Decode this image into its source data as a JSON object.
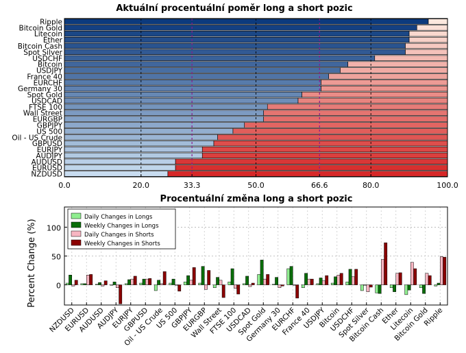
{
  "chart_data": [
    {
      "type": "bar",
      "orientation": "horizontal",
      "stacked": true,
      "title": "Aktuální procentuální poměr long a short pozic",
      "categories": [
        "Ripple",
        "Bitcoin Gold",
        "Litecoin",
        "Ether",
        "Bitcoin Cash",
        "Spot Silver",
        "USDCHF",
        "Bitcoin",
        "USDJPY",
        "France 40",
        "EURCHF",
        "Germany 30",
        "Spot Gold",
        "USDCAD",
        "FTSE 100",
        "Wall Street",
        "EURGBP",
        "GBPJPY",
        "US 500",
        "Oil - US Crude",
        "GBPUSD",
        "EURJPY",
        "AUDJPY",
        "AUDUSD",
        "EURUSD",
        "NZDUSD"
      ],
      "long_values": [
        95,
        92,
        90,
        90,
        89,
        89,
        81,
        74,
        72,
        69,
        67,
        67,
        62,
        61,
        53,
        52,
        52,
        47,
        44,
        40,
        39,
        36,
        36,
        29,
        29,
        27
      ],
      "xlim": [
        0,
        100
      ],
      "xticks": [
        "0.0",
        "20.0",
        "33.3",
        "50.0",
        "66.6",
        "80.0",
        "100.0"
      ],
      "highlight_ticks": [
        "33.3",
        "66.6"
      ],
      "highlight_color": "#8b1a8b"
    },
    {
      "type": "bar",
      "title": "Procentuální změna long a short pozic",
      "ylabel": "Percent Change (%)",
      "ylim": [
        -35,
        135
      ],
      "yticks": [
        0,
        50,
        100
      ],
      "grid": true,
      "legend_position": "top-left",
      "categories": [
        "NZDUSD",
        "EURUSD",
        "AUDUSD",
        "AUDJPY",
        "EURJPY",
        "GBPUSD",
        "Oil - US Crude",
        "US 500",
        "GBPJPY",
        "EURGBP",
        "Wall Street",
        "FTSE 100",
        "USDCAD",
        "Spot Gold",
        "Germany 30",
        "EURCHF",
        "France 40",
        "USDJPY",
        "Bitcoin",
        "USDCHF",
        "Spot Silver",
        "Bitcoin Cash",
        "Ether",
        "Litecoin",
        "Bitcoin Gold",
        "Ripple"
      ],
      "series": [
        {
          "name": "Daily Changes in Longs",
          "color": "#90ee90",
          "values": [
            3,
            2,
            1,
            0,
            2,
            3,
            -10,
            3,
            5,
            3,
            -5,
            5,
            2,
            18,
            1,
            28,
            -5,
            2,
            3,
            5,
            -10,
            -14,
            -5,
            -17,
            -5,
            -2
          ]
        },
        {
          "name": "Weekly Changes in Longs",
          "color": "#0a6e0a",
          "values": [
            17,
            2,
            4,
            5,
            9,
            10,
            8,
            10,
            16,
            32,
            13,
            28,
            15,
            43,
            13,
            32,
            20,
            12,
            14,
            27,
            0,
            -15,
            -12,
            -9,
            -15,
            3
          ]
        },
        {
          "name": "Daily Changes in Shorts",
          "color": "#f7b6c2",
          "values": [
            -2,
            17,
            -2,
            -5,
            10,
            10,
            2,
            0,
            8,
            -8,
            8,
            -6,
            -3,
            10,
            -5,
            0,
            10,
            7,
            17,
            14,
            -12,
            44,
            20,
            39,
            20,
            49
          ]
        },
        {
          "name": "Weekly Changes in Shorts",
          "color": "#8b0000",
          "values": [
            8,
            18,
            7,
            -33,
            15,
            11,
            23,
            -11,
            30,
            25,
            -22,
            -16,
            3,
            18,
            -2,
            -23,
            10,
            16,
            20,
            27,
            -4,
            73,
            21,
            28,
            16,
            48
          ]
        }
      ]
    }
  ]
}
